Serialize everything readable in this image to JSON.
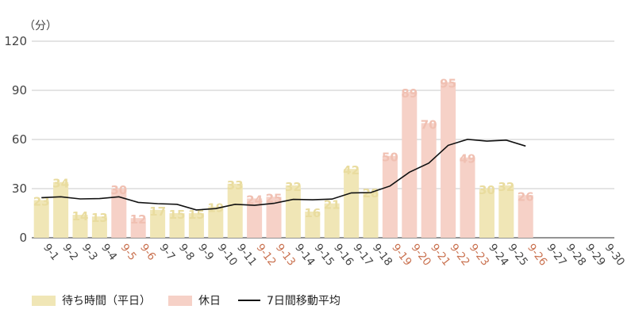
{
  "chart_data": {
    "type": "bar",
    "unit_label": "（分）",
    "yticks": [
      0,
      30,
      60,
      90,
      120
    ],
    "ylim": [
      0,
      120
    ],
    "grid": true,
    "categories": [
      "9-1",
      "9-2",
      "9-3",
      "9-4",
      "9-5",
      "9-6",
      "9-7",
      "9-8",
      "9-9",
      "9-10",
      "9-11",
      "9-12",
      "9-13",
      "9-14",
      "9-15",
      "9-16",
      "9-17",
      "9-18",
      "9-19",
      "9-20",
      "9-21",
      "9-22",
      "9-23",
      "9-24",
      "9-25",
      "9-26",
      "9-27",
      "9-28",
      "9-29",
      "9-30"
    ],
    "holidays": [
      false,
      false,
      false,
      false,
      true,
      true,
      false,
      false,
      false,
      false,
      false,
      true,
      true,
      false,
      false,
      false,
      false,
      false,
      true,
      true,
      true,
      true,
      true,
      false,
      false,
      true,
      false,
      false,
      false,
      false
    ],
    "series": [
      {
        "name": "待ち時間（平日）",
        "kind": "bar",
        "color": "#f0e6b6",
        "label_color": "#e9dc9f",
        "values": [
          23,
          34,
          14,
          13,
          null,
          null,
          17,
          15,
          15,
          19,
          33,
          null,
          null,
          32,
          16,
          21,
          42,
          28,
          null,
          null,
          null,
          null,
          null,
          30,
          32,
          null,
          null,
          null,
          null,
          null
        ]
      },
      {
        "name": "休日",
        "kind": "bar",
        "color": "#f6d1c7",
        "label_color": "#f0c0b2",
        "values": [
          null,
          null,
          null,
          null,
          30,
          12,
          null,
          null,
          null,
          null,
          null,
          24,
          25,
          null,
          null,
          null,
          null,
          null,
          50,
          89,
          70,
          95,
          49,
          null,
          null,
          26,
          null,
          null,
          null,
          null
        ]
      },
      {
        "name": "7日間移動平均",
        "kind": "line",
        "color": "#111111",
        "values": [
          24.5,
          25,
          23.7,
          23.9,
          25,
          21.6,
          20.8,
          20.4,
          17,
          17.8,
          20.4,
          19.8,
          21,
          23.4,
          23.2,
          23.6,
          27.4,
          27.6,
          31.6,
          40,
          45.6,
          56.4,
          60.1,
          59,
          59.6,
          56,
          null,
          null,
          null,
          null
        ]
      }
    ],
    "tick_colors": {
      "weekday": "#444444",
      "holiday": "#c9714f"
    },
    "legend_position": "bottom-left"
  }
}
